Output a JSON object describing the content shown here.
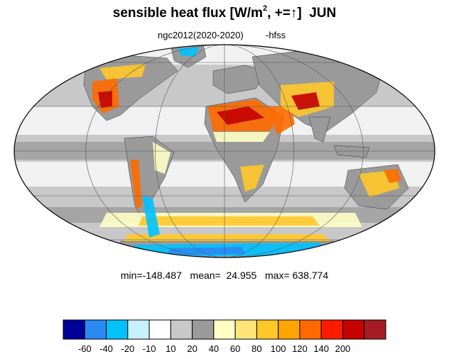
{
  "title": {
    "main": "sensible heat flux [W/m",
    "superscript": "2",
    "after": ", +=",
    "arrow": "↑",
    "close": "]",
    "month": "JUN"
  },
  "subtitle": {
    "left": "ngc2012(2020-2020)",
    "right": "-hfss"
  },
  "stats_text": "min=-148.487   mean=  24.955   max= 638.774",
  "colorbar": {
    "boxes": [
      "#000099",
      "#2a8af2",
      "#00c2ff",
      "#c8f1ff",
      "#ffffff",
      "#c8c8c8",
      "#9a9a9a",
      "#ffffc6",
      "#ffe47a",
      "#ffc829",
      "#ffa500",
      "#ff6a00",
      "#ff1a00",
      "#c40000",
      "#a61c22"
    ],
    "labels": [
      "-60",
      "-40",
      "-20",
      "-10",
      "10",
      "20",
      "40",
      "60",
      "80",
      "100",
      "120",
      "140",
      "200"
    ]
  },
  "map_colors": {
    "ocean_light": "#ffffff",
    "ocean_gray": "#c8c8c8",
    "ocean_dark": "#9a9a9a",
    "land_dark": "#9a9a9a",
    "hot_low": "#ffffc6",
    "hot_mid": "#ffc829",
    "hot_high": "#ff6a00",
    "hot_peak": "#c40000",
    "cold": "#00c2ff",
    "cold_deep": "#2a8af2",
    "grid": "#555555"
  }
}
